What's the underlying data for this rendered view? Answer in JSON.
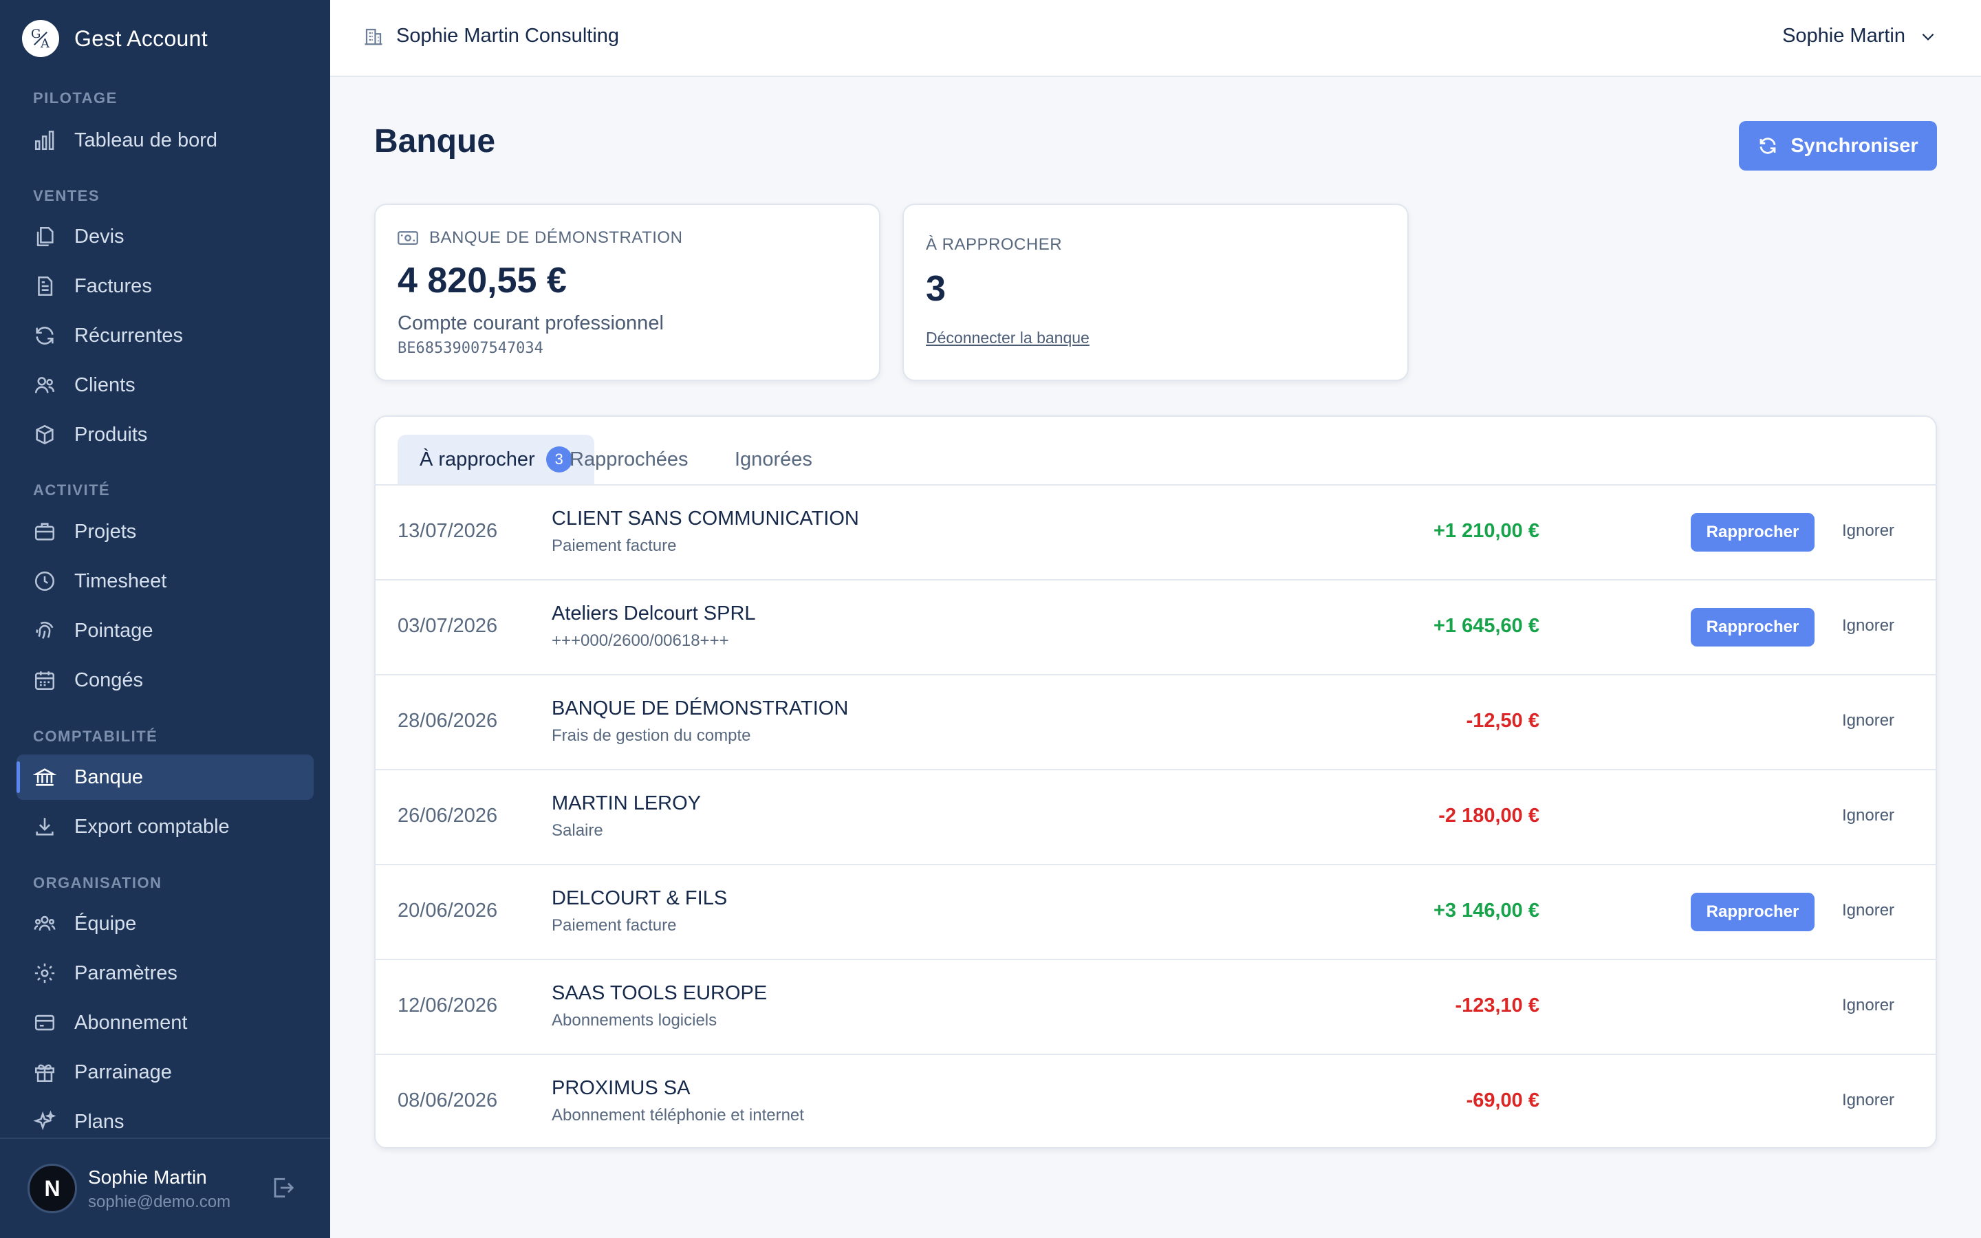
{
  "app": {
    "name": "Gest Account",
    "logo_text": {
      "top": "G",
      "bottom": "A"
    }
  },
  "sidebar": {
    "sections": [
      {
        "title": "PILOTAGE",
        "items": [
          {
            "label": "Tableau de bord",
            "icon": "bar-chart-icon"
          }
        ]
      },
      {
        "title": "VENTES",
        "items": [
          {
            "label": "Devis",
            "icon": "documents-icon"
          },
          {
            "label": "Factures",
            "icon": "invoice-icon"
          },
          {
            "label": "Récurrentes",
            "icon": "refresh-icon"
          },
          {
            "label": "Clients",
            "icon": "users-icon"
          },
          {
            "label": "Produits",
            "icon": "box-icon"
          }
        ]
      },
      {
        "title": "ACTIVITÉ",
        "items": [
          {
            "label": "Projets",
            "icon": "briefcase-icon"
          },
          {
            "label": "Timesheet",
            "icon": "clock-icon"
          },
          {
            "label": "Pointage",
            "icon": "fingerprint-icon"
          },
          {
            "label": "Congés",
            "icon": "calendar-icon"
          }
        ]
      },
      {
        "title": "COMPTABILITÉ",
        "items": [
          {
            "label": "Banque",
            "icon": "bank-icon",
            "active": true
          },
          {
            "label": "Export comptable",
            "icon": "download-icon"
          }
        ]
      },
      {
        "title": "ORGANISATION",
        "items": [
          {
            "label": "Équipe",
            "icon": "team-icon"
          },
          {
            "label": "Paramètres",
            "icon": "gear-icon"
          },
          {
            "label": "Abonnement",
            "icon": "credit-card-icon"
          },
          {
            "label": "Parrainage",
            "icon": "gift-icon"
          },
          {
            "label": "Plans",
            "icon": "sparkles-icon"
          }
        ]
      }
    ],
    "user": {
      "initial": "N",
      "name": "Sophie Martin",
      "email": "sophie@demo.com"
    }
  },
  "topbar": {
    "company": "Sophie Martin Consulting",
    "user_name": "Sophie Martin"
  },
  "page": {
    "title": "Banque",
    "sync_label": "Synchroniser"
  },
  "bank_card": {
    "label": "BANQUE DE DÉMONSTRATION",
    "balance": "4 820,55 €",
    "account_type": "Compte courant professionnel",
    "iban": "BE68539007547034"
  },
  "reconcile_card": {
    "label": "À RAPPROCHER",
    "count": "3",
    "disconnect_label": "Déconnecter la banque"
  },
  "tabs": [
    {
      "label": "À rapprocher",
      "badge": "3",
      "active": true
    },
    {
      "label": "Rapprochées"
    },
    {
      "label": "Ignorées"
    }
  ],
  "actions": {
    "match": "Rapprocher",
    "ignore": "Ignorer"
  },
  "transactions": [
    {
      "date": "13/07/2026",
      "label": "CLIENT SANS COMMUNICATION",
      "desc": "Paiement facture",
      "amount": "+1 210,00 €",
      "positive": true,
      "can_match": true
    },
    {
      "date": "03/07/2026",
      "label": "Ateliers Delcourt SPRL",
      "desc": "+++000/2600/00618+++",
      "amount": "+1 645,60 €",
      "positive": true,
      "can_match": true
    },
    {
      "date": "28/06/2026",
      "label": "BANQUE DE DÉMONSTRATION",
      "desc": "Frais de gestion du compte",
      "amount": "-12,50 €",
      "positive": false,
      "can_match": false
    },
    {
      "date": "26/06/2026",
      "label": "MARTIN LEROY",
      "desc": "Salaire",
      "amount": "-2 180,00 €",
      "positive": false,
      "can_match": false
    },
    {
      "date": "20/06/2026",
      "label": "DELCOURT & FILS",
      "desc": "Paiement facture",
      "amount": "+3 146,00 €",
      "positive": true,
      "can_match": true
    },
    {
      "date": "12/06/2026",
      "label": "SAAS TOOLS EUROPE",
      "desc": "Abonnements logiciels",
      "amount": "-123,10 €",
      "positive": false,
      "can_match": false
    },
    {
      "date": "08/06/2026",
      "label": "PROXIMUS SA",
      "desc": "Abonnement téléphonie et internet",
      "amount": "-69,00 €",
      "positive": false,
      "can_match": false
    }
  ],
  "colors": {
    "sidebar_bg": "#1c3356",
    "accent": "#5b86f0",
    "positive": "#16a34a",
    "negative": "#dc2626"
  }
}
